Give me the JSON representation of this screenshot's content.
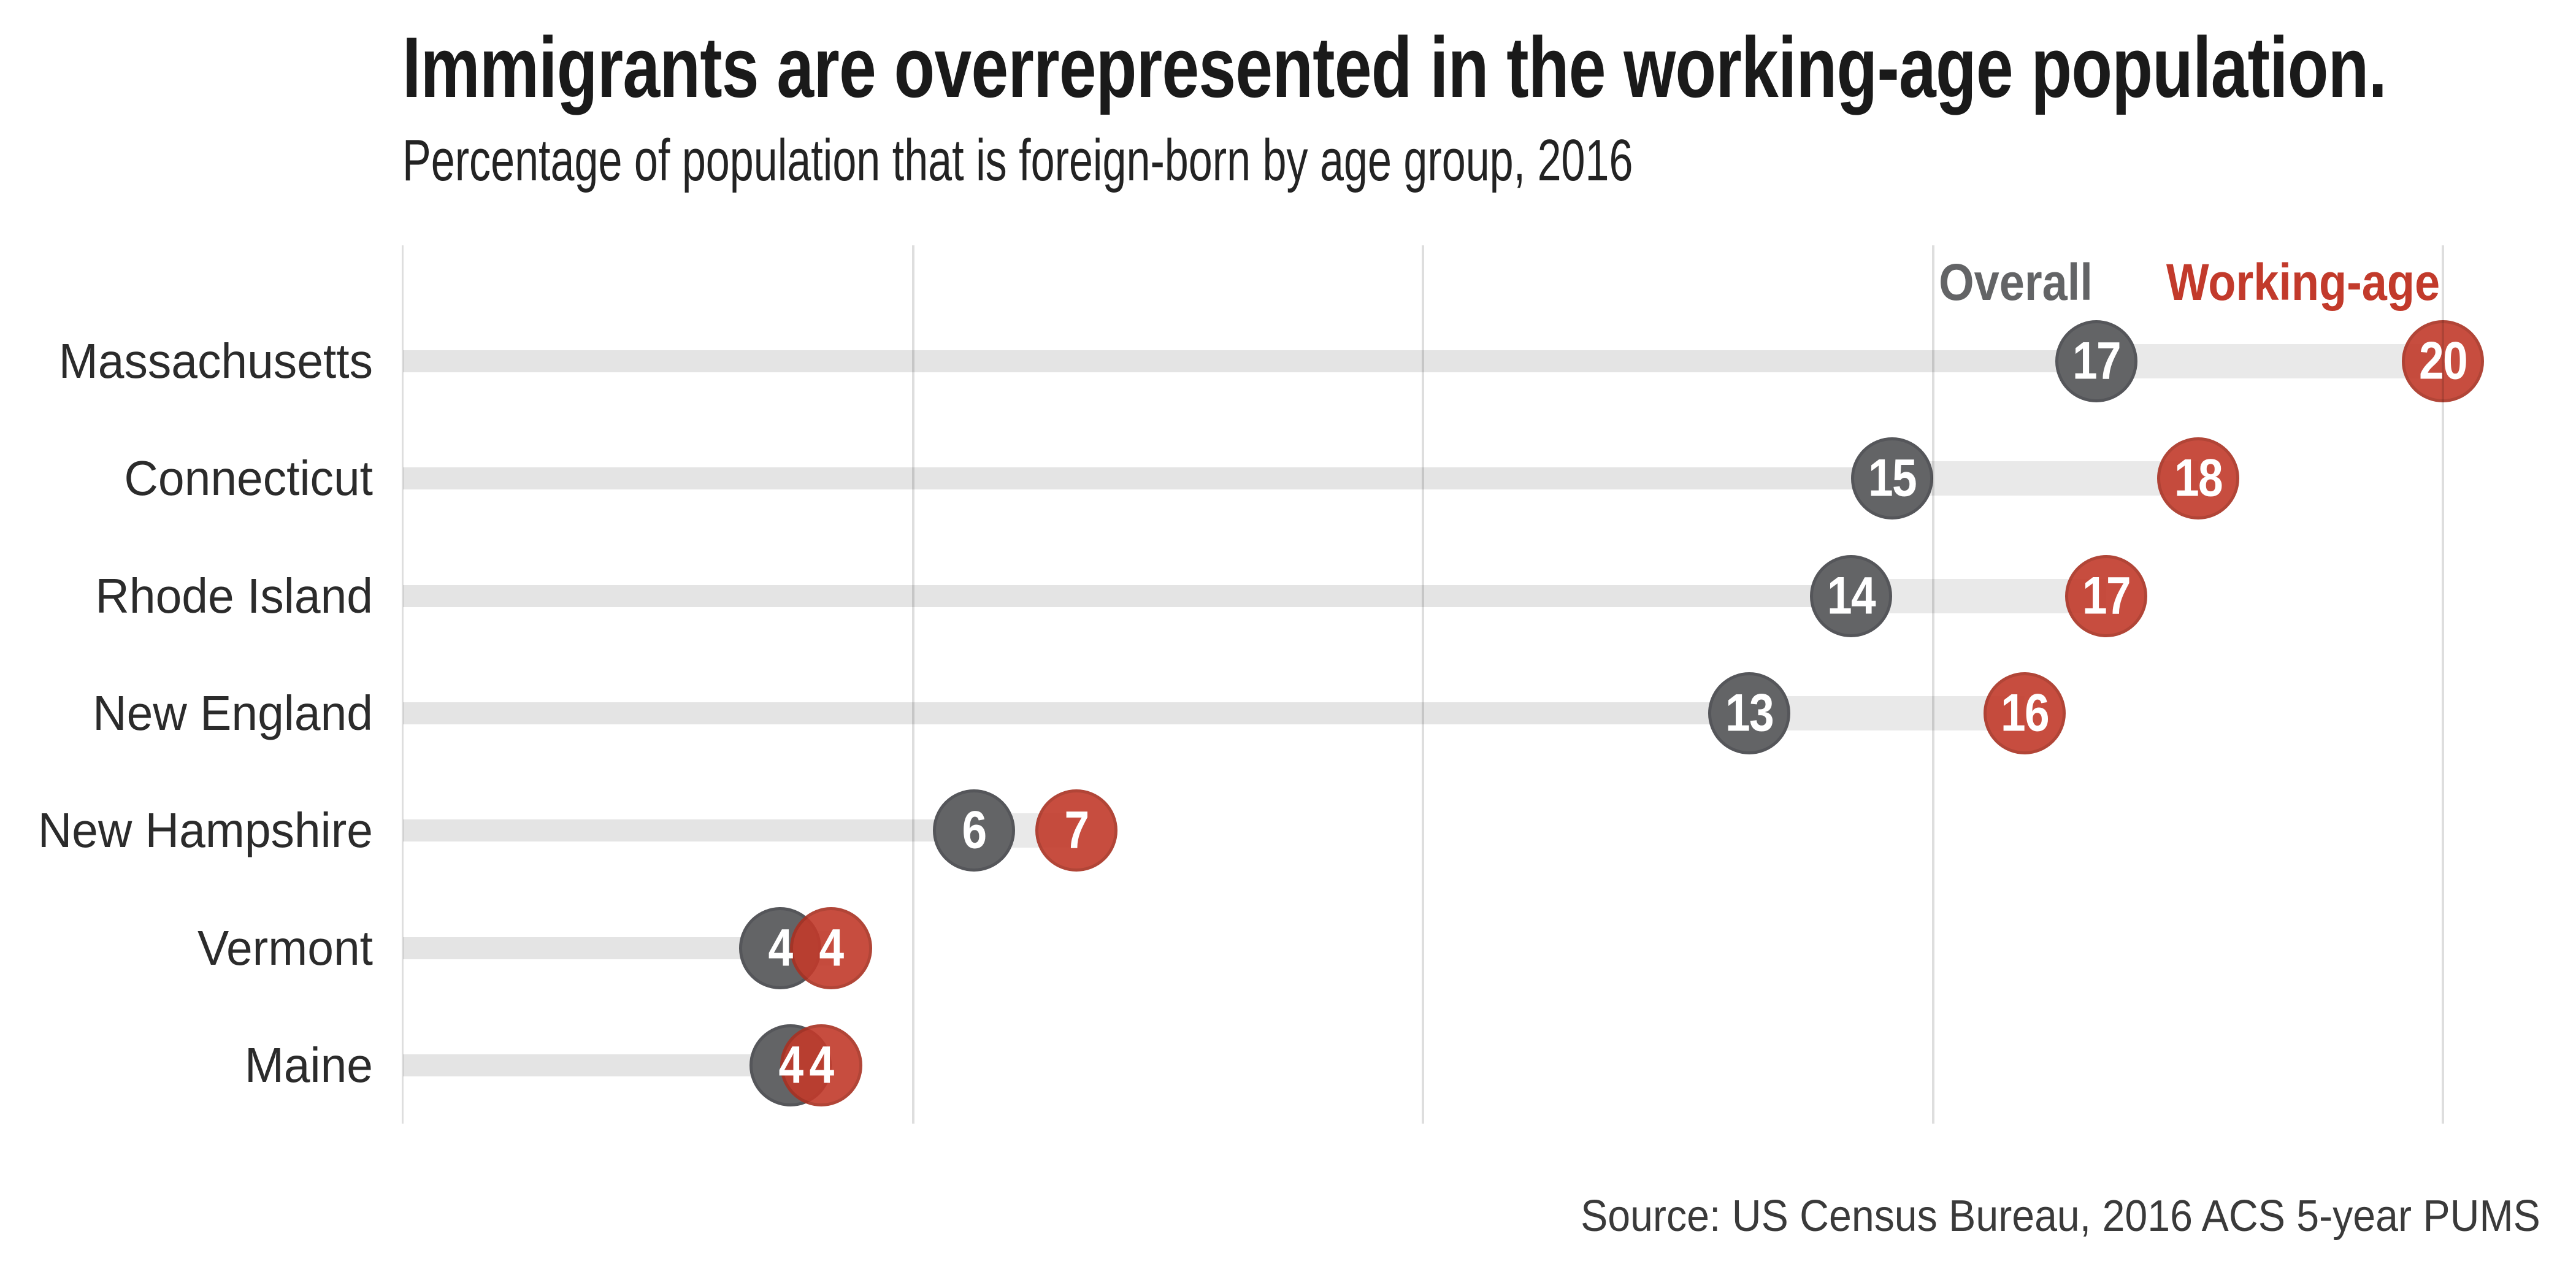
{
  "chart_data": {
    "type": "dumbbell-dot",
    "title": "Immigrants are overrepresented in the working-age population.",
    "subtitle": "Percentage of population that is foreign-born by age group, 2016",
    "categories": [
      "Massachusetts",
      "Connecticut",
      "Rhode Island",
      "New England",
      "New Hampshire",
      "Vermont",
      "Maine"
    ],
    "series": [
      {
        "name": "Overall",
        "color": "#636466",
        "border_color": "#55565a",
        "display": [
          "17",
          "15",
          "14",
          "13",
          "6",
          "4",
          "4"
        ],
        "values_est": [
          16.6,
          14.6,
          14.2,
          13.2,
          5.6,
          3.7,
          3.8
        ]
      },
      {
        "name": "Working-age",
        "color": "#c23a2b",
        "border_color": "#a93122",
        "display": [
          "20",
          "18",
          "17",
          "16",
          "7",
          "4",
          "4"
        ],
        "values_est": [
          20.0,
          17.6,
          16.7,
          15.9,
          6.6,
          4.2,
          4.1
        ]
      }
    ],
    "x_axis": {
      "min": 0,
      "max": 20,
      "gridlines": [
        5,
        10,
        15,
        20
      ],
      "tick_labels_shown": false
    },
    "legend_position": "top-right",
    "grid": "vertical-only",
    "track_color": "#e4e4e4",
    "connector_color": "#e9e9e9",
    "source": "Source: US Census Bureau, 2016 ACS 5-year PUMS"
  }
}
